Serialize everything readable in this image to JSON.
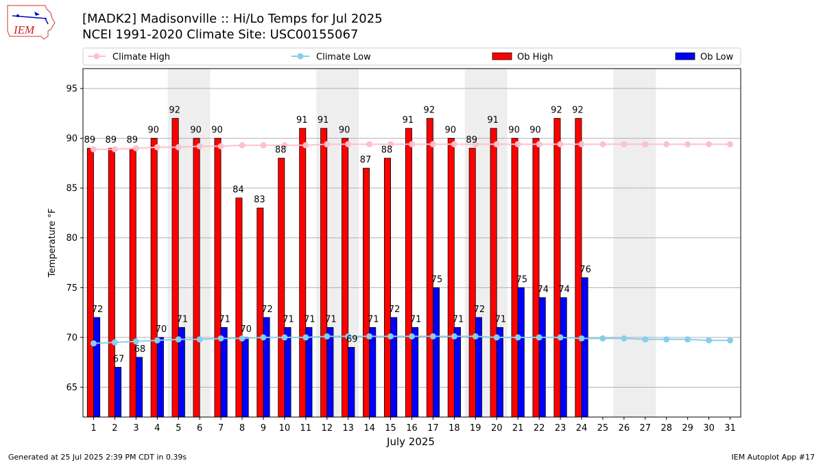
{
  "title": {
    "line1": "[MADK2] Madisonville :: Hi/Lo Temps for Jul 2025",
    "line2": "NCEI 1991-2020 Climate Site: USC00155067"
  },
  "logo_text": "IEM",
  "footer": {
    "left": "Generated at 25 Jul 2025 2:39 PM CDT in 0.39s",
    "right": "IEM Autoplot App #17"
  },
  "colors": {
    "ob_high": "#ff0000",
    "ob_low": "#0000ff",
    "climate_high": "#ffc0cb",
    "climate_low": "#87ceeb",
    "weekend": "#eeeeee",
    "grid": "#b0b0b0"
  },
  "chart_data": {
    "type": "bar",
    "xlabel": "July 2025",
    "ylabel": "Temperature °F",
    "ylim": [
      62,
      97
    ],
    "yticks": [
      65,
      70,
      75,
      80,
      85,
      90,
      95
    ],
    "grid": "horizontal",
    "legend_position": "top",
    "categories": [
      "1",
      "2",
      "3",
      "4",
      "5",
      "6",
      "7",
      "8",
      "9",
      "10",
      "11",
      "12",
      "13",
      "14",
      "15",
      "16",
      "17",
      "18",
      "19",
      "20",
      "21",
      "22",
      "23",
      "24",
      "25",
      "26",
      "27",
      "28",
      "29",
      "30",
      "31"
    ],
    "weekend_days": [
      5,
      6,
      12,
      13,
      19,
      20,
      26,
      27
    ],
    "series": [
      {
        "name": "Ob High",
        "kind": "bar",
        "values": [
          89,
          89,
          89,
          90,
          92,
          90,
          90,
          84,
          83,
          88,
          91,
          91,
          90,
          87,
          88,
          91,
          92,
          90,
          89,
          91,
          90,
          90,
          92,
          92,
          null,
          null,
          null,
          null,
          null,
          null,
          null
        ]
      },
      {
        "name": "Ob Low",
        "kind": "bar",
        "values": [
          72,
          67,
          68,
          70,
          71,
          null,
          71,
          70,
          72,
          71,
          71,
          71,
          69,
          71,
          72,
          71,
          75,
          71,
          72,
          71,
          75,
          74,
          74,
          76,
          null,
          null,
          null,
          null,
          null,
          null,
          null
        ]
      },
      {
        "name": "Climate High",
        "kind": "line",
        "values": [
          88.9,
          88.9,
          89.0,
          89.1,
          89.1,
          89.2,
          89.2,
          89.3,
          89.3,
          89.3,
          89.3,
          89.4,
          89.4,
          89.4,
          89.4,
          89.4,
          89.4,
          89.4,
          89.4,
          89.4,
          89.4,
          89.4,
          89.4,
          89.4,
          89.4,
          89.4,
          89.4,
          89.4,
          89.4,
          89.4,
          89.4
        ]
      },
      {
        "name": "Climate Low",
        "kind": "line",
        "values": [
          69.4,
          69.5,
          69.6,
          69.7,
          69.8,
          69.8,
          69.9,
          69.9,
          70.0,
          70.0,
          70.0,
          70.1,
          70.1,
          70.1,
          70.1,
          70.1,
          70.1,
          70.1,
          70.1,
          70.0,
          70.0,
          70.0,
          70.0,
          69.9,
          69.9,
          69.9,
          69.8,
          69.8,
          69.8,
          69.7,
          69.7
        ]
      }
    ]
  }
}
